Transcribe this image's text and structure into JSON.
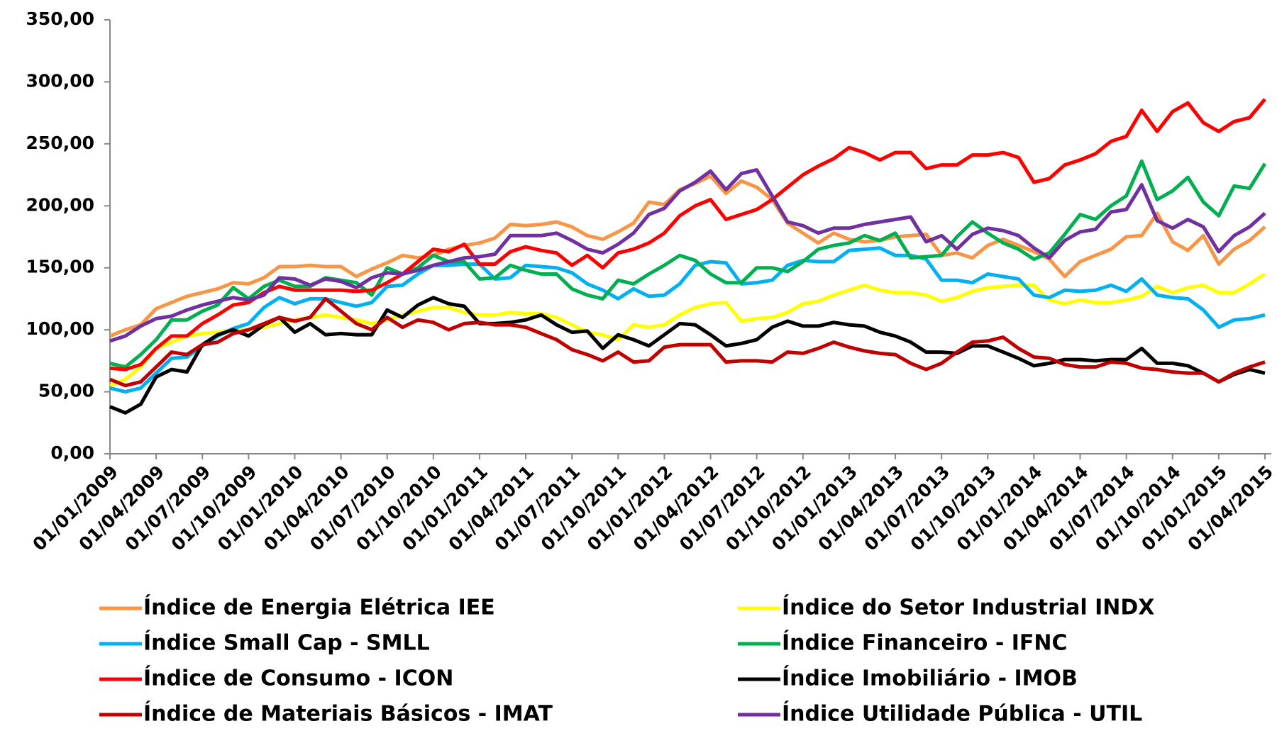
{
  "chart_data": {
    "type": "line",
    "categories": [
      "01/01/2009",
      null,
      null,
      "01/04/2009",
      null,
      null,
      "01/07/2009",
      null,
      null,
      "01/10/2009",
      null,
      null,
      "01/01/2010",
      null,
      null,
      "01/04/2010",
      null,
      null,
      "01/07/2010",
      null,
      null,
      "01/10/2010",
      null,
      null,
      "01/01/2011",
      null,
      null,
      "01/04/2011",
      null,
      null,
      "01/07/2011",
      null,
      null,
      "01/10/2011",
      null,
      null,
      "01/01/2012",
      null,
      null,
      "01/04/2012",
      null,
      null,
      "01/07/2012",
      null,
      null,
      "01/10/2012",
      null,
      null,
      "01/01/2013",
      null,
      null,
      "01/04/2013",
      null,
      null,
      "01/07/2013",
      null,
      null,
      "01/10/2013",
      null,
      null,
      "01/01/2014",
      null,
      null,
      "01/04/2014",
      null,
      null,
      "01/07/2014",
      null,
      null,
      "01/10/2014",
      null,
      null,
      "01/01/2015",
      null,
      null,
      "01/04/2015"
    ],
    "ylim": [
      0,
      350
    ],
    "yticks": [
      {
        "value": 0,
        "label": "0,00"
      },
      {
        "value": 50,
        "label": "50,00"
      },
      {
        "value": 100,
        "label": "100,00"
      },
      {
        "value": 150,
        "label": "150,00"
      },
      {
        "value": 200,
        "label": "200,00"
      },
      {
        "value": 250,
        "label": "250,00"
      },
      {
        "value": 300,
        "label": "300,00"
      },
      {
        "value": 350,
        "label": "350,00"
      }
    ],
    "grid": false,
    "legend": "bottom",
    "series": [
      {
        "name": "Índice de Energia Elétrica IEE",
        "color": "#f79646",
        "values": [
          95,
          100,
          104,
          117,
          122,
          127,
          130,
          133,
          138,
          137,
          142,
          151,
          151,
          152,
          151,
          151,
          143,
          149,
          154,
          160,
          158,
          160,
          165,
          168,
          170,
          174,
          185,
          184,
          185,
          187,
          183,
          176,
          173,
          179,
          186,
          203,
          201,
          213,
          218,
          224,
          210,
          220,
          215,
          205,
          186,
          178,
          170,
          178,
          173,
          171,
          172,
          175,
          176,
          177,
          160,
          162,
          158,
          168,
          173,
          168,
          163,
          157,
          143,
          155,
          160,
          165,
          175,
          176,
          194,
          171,
          164,
          176,
          153,
          165,
          172,
          183
        ]
      },
      {
        "name": "Índice do Setor Industrial INDX",
        "color": "#ffff00",
        "values": [
          55,
          60,
          70,
          85,
          90,
          95,
          97,
          98,
          100,
          100,
          102,
          105,
          108,
          110,
          112,
          110,
          108,
          105,
          108,
          112,
          115,
          118,
          118,
          114,
          112,
          112,
          114,
          113,
          113,
          110,
          104,
          98,
          96,
          92,
          104,
          102,
          104,
          112,
          118,
          121,
          122,
          107,
          109,
          110,
          114,
          121,
          123,
          128,
          132,
          136,
          132,
          130,
          130,
          128,
          123,
          126,
          131,
          134,
          135,
          136,
          136,
          124,
          121,
          124,
          122,
          122,
          124,
          127,
          135,
          130,
          134,
          136,
          130,
          130,
          137,
          145
        ]
      },
      {
        "name": "Índice Small Cap - SMLL",
        "color": "#00b0f0",
        "values": [
          53,
          50,
          53,
          65,
          77,
          78,
          87,
          95,
          101,
          105,
          118,
          126,
          121,
          125,
          125,
          122,
          119,
          122,
          135,
          136,
          145,
          152,
          152,
          153,
          153,
          141,
          142,
          152,
          151,
          150,
          146,
          137,
          132,
          125,
          133,
          127,
          128,
          137,
          152,
          155,
          154,
          137,
          138,
          140,
          152,
          156,
          155,
          155,
          164,
          165,
          166,
          160,
          160,
          157,
          140,
          140,
          138,
          145,
          143,
          141,
          128,
          126,
          132,
          131,
          132,
          136,
          131,
          141,
          128,
          126,
          125,
          116,
          102,
          108,
          109,
          112
        ]
      },
      {
        "name": "Índice Financeiro - IFNC",
        "color": "#00b050",
        "values": [
          73,
          70,
          80,
          92,
          108,
          108,
          115,
          120,
          134,
          125,
          135,
          140,
          135,
          135,
          142,
          140,
          138,
          128,
          150,
          145,
          150,
          160,
          155,
          155,
          141,
          142,
          152,
          148,
          145,
          145,
          133,
          128,
          125,
          140,
          137,
          145,
          152,
          160,
          156,
          145,
          138,
          138,
          150,
          150,
          147,
          155,
          165,
          168,
          170,
          176,
          172,
          178,
          158,
          159,
          160,
          175,
          187,
          178,
          170,
          165,
          157,
          162,
          177,
          193,
          189,
          200,
          208,
          236,
          205,
          212,
          223,
          203,
          192,
          216,
          214,
          234
        ]
      },
      {
        "name": "Índice de Consumo - ICON",
        "color": "#ff0000",
        "values": [
          69,
          68,
          72,
          85,
          95,
          95,
          105,
          112,
          120,
          122,
          130,
          135,
          132,
          132,
          132,
          132,
          131,
          132,
          138,
          145,
          155,
          165,
          163,
          169,
          153,
          153,
          163,
          167,
          164,
          162,
          152,
          160,
          150,
          162,
          165,
          170,
          178,
          192,
          200,
          205,
          189,
          193,
          197,
          205,
          215,
          225,
          232,
          238,
          247,
          243,
          237,
          243,
          243,
          230,
          233,
          233,
          241,
          241,
          243,
          239,
          219,
          222,
          233,
          237,
          242,
          252,
          256,
          277,
          260,
          276,
          283,
          267,
          260,
          268,
          271,
          286
        ]
      },
      {
        "name": "Índice Imobiliário - IMOB",
        "color": "#000000",
        "values": [
          38,
          33,
          40,
          62,
          68,
          66,
          88,
          96,
          100,
          95,
          104,
          110,
          98,
          105,
          96,
          97,
          96,
          96,
          116,
          110,
          120,
          126,
          121,
          119,
          105,
          105,
          106,
          108,
          112,
          104,
          98,
          99,
          85,
          96,
          92,
          87,
          96,
          105,
          104,
          96,
          87,
          89,
          92,
          102,
          107,
          103,
          103,
          106,
          104,
          103,
          98,
          95,
          90,
          82,
          82,
          81,
          87,
          87,
          82,
          77,
          71,
          73,
          76,
          76,
          75,
          76,
          76,
          85,
          73,
          73,
          71,
          65,
          58,
          64,
          68,
          65
        ]
      },
      {
        "name": "Índice de Materiais Básicos - IMAT",
        "color": "#c00000",
        "values": [
          60,
          55,
          58,
          70,
          82,
          80,
          88,
          90,
          97,
          100,
          105,
          110,
          107,
          110,
          125,
          115,
          105,
          100,
          110,
          102,
          108,
          106,
          100,
          105,
          106,
          104,
          104,
          102,
          97,
          92,
          84,
          80,
          75,
          82,
          74,
          75,
          86,
          88,
          88,
          88,
          74,
          75,
          75,
          74,
          82,
          81,
          85,
          90,
          86,
          83,
          81,
          80,
          73,
          68,
          73,
          82,
          90,
          91,
          94,
          85,
          78,
          77,
          72,
          70,
          70,
          74,
          73,
          69,
          68,
          66,
          65,
          65,
          58,
          65,
          70,
          74
        ]
      },
      {
        "name": "Índice Utilidade Pública - UTIL",
        "color": "#7030a0",
        "values": [
          91,
          95,
          103,
          109,
          111,
          116,
          120,
          123,
          126,
          124,
          128,
          142,
          141,
          136,
          141,
          139,
          134,
          142,
          146,
          145,
          148,
          152,
          155,
          158,
          159,
          161,
          176,
          176,
          176,
          178,
          172,
          165,
          162,
          169,
          178,
          193,
          198,
          212,
          219,
          228,
          213,
          226,
          229,
          208,
          187,
          184,
          178,
          182,
          182,
          185,
          187,
          189,
          191,
          171,
          176,
          165,
          177,
          182,
          180,
          176,
          166,
          158,
          172,
          179,
          181,
          195,
          197,
          217,
          188,
          182,
          189,
          183,
          163,
          176,
          183,
          194
        ]
      }
    ]
  }
}
